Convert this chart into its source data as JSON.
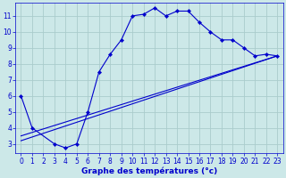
{
  "bg_color": "#cce8e8",
  "grid_color": "#aacccc",
  "line_color": "#0000cc",
  "xlabel": "Graphe des températures (°c)",
  "xlabel_color": "#0000cc",
  "tick_color": "#0000cc",
  "xlim": [
    -0.5,
    23.5
  ],
  "ylim": [
    2.4,
    11.8
  ],
  "xticks": [
    0,
    1,
    2,
    3,
    4,
    5,
    6,
    7,
    8,
    9,
    10,
    11,
    12,
    13,
    14,
    15,
    16,
    17,
    18,
    19,
    20,
    21,
    22,
    23
  ],
  "yticks": [
    3,
    4,
    5,
    6,
    7,
    8,
    9,
    10,
    11
  ],
  "curve1_x": [
    0,
    1,
    3,
    4,
    5,
    6,
    7,
    8,
    9,
    10,
    11,
    12,
    13,
    14,
    15,
    16,
    17,
    18,
    19,
    20,
    21,
    22,
    23
  ],
  "curve1_y": [
    6.0,
    4.0,
    3.0,
    2.75,
    3.0,
    5.0,
    7.5,
    8.6,
    9.5,
    11.0,
    11.1,
    11.5,
    11.0,
    11.3,
    11.3,
    10.6,
    10.0,
    9.5,
    9.5,
    9.0,
    8.5,
    8.6,
    8.5
  ],
  "curve2_x": [
    0,
    23
  ],
  "curve2_y": [
    3.2,
    8.5
  ],
  "curve3_x": [
    0,
    23
  ],
  "curve3_y": [
    3.5,
    8.5
  ],
  "figsize": [
    3.2,
    2.0
  ],
  "dpi": 100
}
